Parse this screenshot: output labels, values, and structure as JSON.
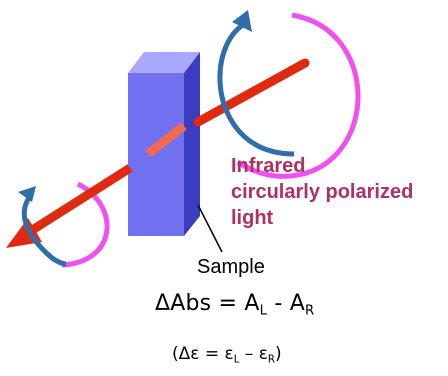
{
  "light_label": {
    "line1": "Infrared",
    "line2": "circularly polarized",
    "line3": "light"
  },
  "sample_label": "Sample",
  "equation_main": {
    "lhs": "ΔAbs = A",
    "sub_l": "L",
    "mid": " - A",
    "sub_r": "R"
  },
  "equation_paren": {
    "open": "(Δε = ε",
    "sub_l": "L",
    "mid": " – ε",
    "sub_r": "R",
    "close": ")"
  },
  "colors": {
    "beam": "#e02a10",
    "prism_front": "#7070f0",
    "prism_top": "#a8a8ff",
    "prism_side": "#3c3cc0",
    "arc_blue": "#2f6ea8",
    "arc_magenta": "#f050f0",
    "label_text": "#b03060"
  }
}
